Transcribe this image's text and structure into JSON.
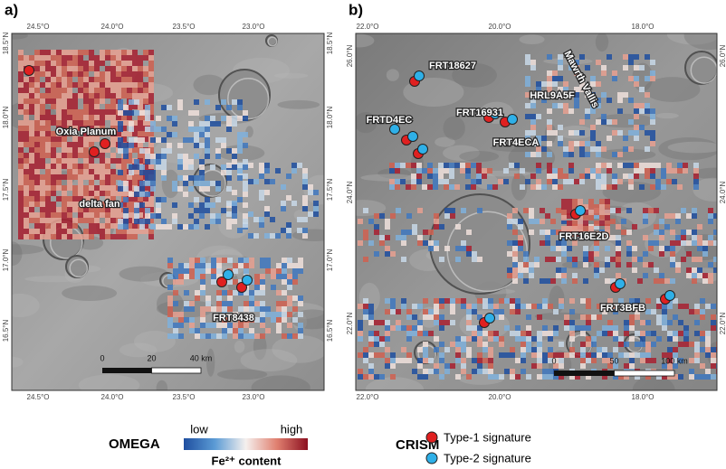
{
  "panels": [
    {
      "label": "a)",
      "lon_ticks": [
        "24.5°O",
        "24.0°O",
        "23.5°O",
        "23.0°O"
      ],
      "lat_ticks": [
        "18.5°N",
        "18.0°N",
        "17.5°N",
        "17.0°N",
        "16.5°N"
      ],
      "annotations": [
        "Oxia Planum",
        "delta fan",
        "FRT8438"
      ],
      "scale": [
        "0",
        "20",
        "40 km"
      ]
    },
    {
      "label": "b)",
      "lon_ticks": [
        "22.0°O",
        "20.0°O",
        "18.0°O"
      ],
      "lat_ticks": [
        "26.0°N",
        "24.0°N",
        "22.0°N"
      ],
      "annotations": [
        "FRT18627",
        "FRTD4EC",
        "FRT16931",
        "HRL9A5F",
        "FRT4ECA",
        "Mawrth Vallis",
        "FRT16E2D",
        "FRT3BFB"
      ],
      "scale": [
        "0",
        "50",
        "100 km"
      ]
    }
  ],
  "legend": {
    "omega": {
      "title": "OMEGA",
      "low": "low",
      "high": "high",
      "caption": "Fe²⁺ content"
    },
    "crism": {
      "title": "CRISM",
      "items": [
        "Type-1 signature",
        "Type-2 signature"
      ]
    }
  }
}
